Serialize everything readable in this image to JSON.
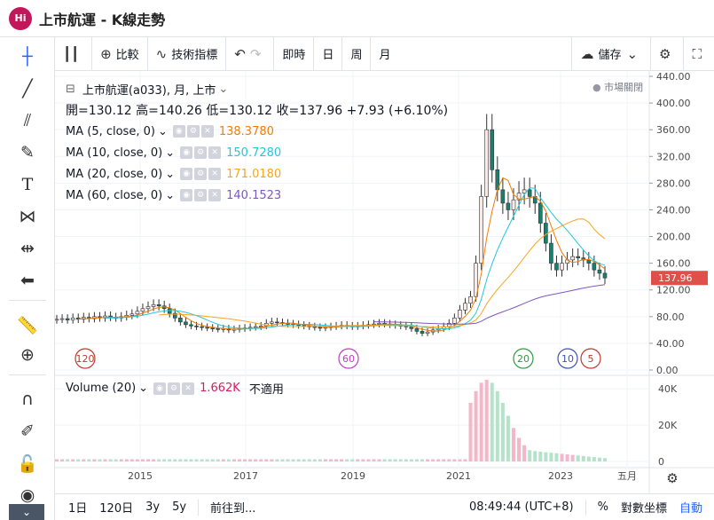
{
  "window": {
    "logo": "Hi",
    "title": "上市航運 - K線走勢"
  },
  "toolbar": {
    "compare_label": "比較",
    "indicators_label": "技術指標",
    "intervals": [
      "即時",
      "日",
      "周",
      "月"
    ],
    "save_label": "儲存"
  },
  "legend": {
    "symbol": "上市航運(a033), 月, 上市",
    "ohlc": "開=130.12  高=140.26  低=130.12  收=137.96  +7.93 (+6.10%)",
    "market_closed": "市場關閉",
    "ma": [
      {
        "label": "MA (5, close, 0)",
        "value": "138.3780",
        "color": "#f57c00"
      },
      {
        "label": "MA (10, close, 0)",
        "value": "150.7280",
        "color": "#26c6da"
      },
      {
        "label": "MA (20, close, 0)",
        "value": "171.0180",
        "color": "#f5a623"
      },
      {
        "label": "MA (60, close, 0)",
        "value": "140.1523",
        "color": "#7e57c2"
      }
    ],
    "volume_label": "Volume (20)",
    "volume_value": "1.662K",
    "volume_extra": "不適用"
  },
  "bottombar": {
    "ranges": [
      "1日",
      "120日",
      "3y",
      "5y"
    ],
    "goto_label": "前往到...",
    "time": "08:49:44 (UTC+8)",
    "percent": "%",
    "log": "對數坐標",
    "auto": "自動"
  },
  "colors": {
    "up": "#e74c3c",
    "down": "#26a69a",
    "price_tag": "#e0504a"
  },
  "chart_data": {
    "type": "candlestick",
    "price_axis": {
      "ticks": [
        "440.00",
        "400.00",
        "360.00",
        "320.00",
        "280.00",
        "240.00",
        "200.00",
        "160.00",
        "120.00",
        "80.00",
        "40.00",
        "0.00"
      ],
      "range": [
        0,
        440
      ]
    },
    "volume_axis": {
      "ticks": [
        "40K",
        "20K",
        "0"
      ],
      "range": [
        0,
        45000
      ]
    },
    "x_axis": {
      "ticks": [
        "2015",
        "2017",
        "2019",
        "2021",
        "2023",
        "五月"
      ]
    },
    "last_price": "137.96",
    "period_markers": [
      "120",
      "60",
      "20",
      "10",
      "5"
    ],
    "candles_monthly_close": [
      76,
      77,
      75,
      78,
      76,
      79,
      77,
      80,
      78,
      81,
      79,
      78,
      80,
      82,
      84,
      88,
      92,
      95,
      98,
      96,
      92,
      85,
      78,
      72,
      68,
      66,
      65,
      64,
      63,
      62,
      61,
      62,
      60,
      61,
      62,
      63,
      64,
      65,
      66,
      70,
      72,
      71,
      70,
      69,
      68,
      67,
      66,
      65,
      64,
      63,
      64,
      65,
      66,
      67,
      66,
      65,
      66,
      67,
      68,
      69,
      70,
      69,
      68,
      67,
      66,
      65,
      62,
      58,
      55,
      57,
      60,
      62,
      65,
      70,
      78,
      90,
      100,
      110,
      160,
      260,
      360,
      300,
      270,
      250,
      240,
      255,
      265,
      270,
      260,
      250,
      220,
      190,
      160,
      150,
      160,
      165,
      170,
      168,
      165,
      160,
      150,
      145,
      138
    ]
  }
}
